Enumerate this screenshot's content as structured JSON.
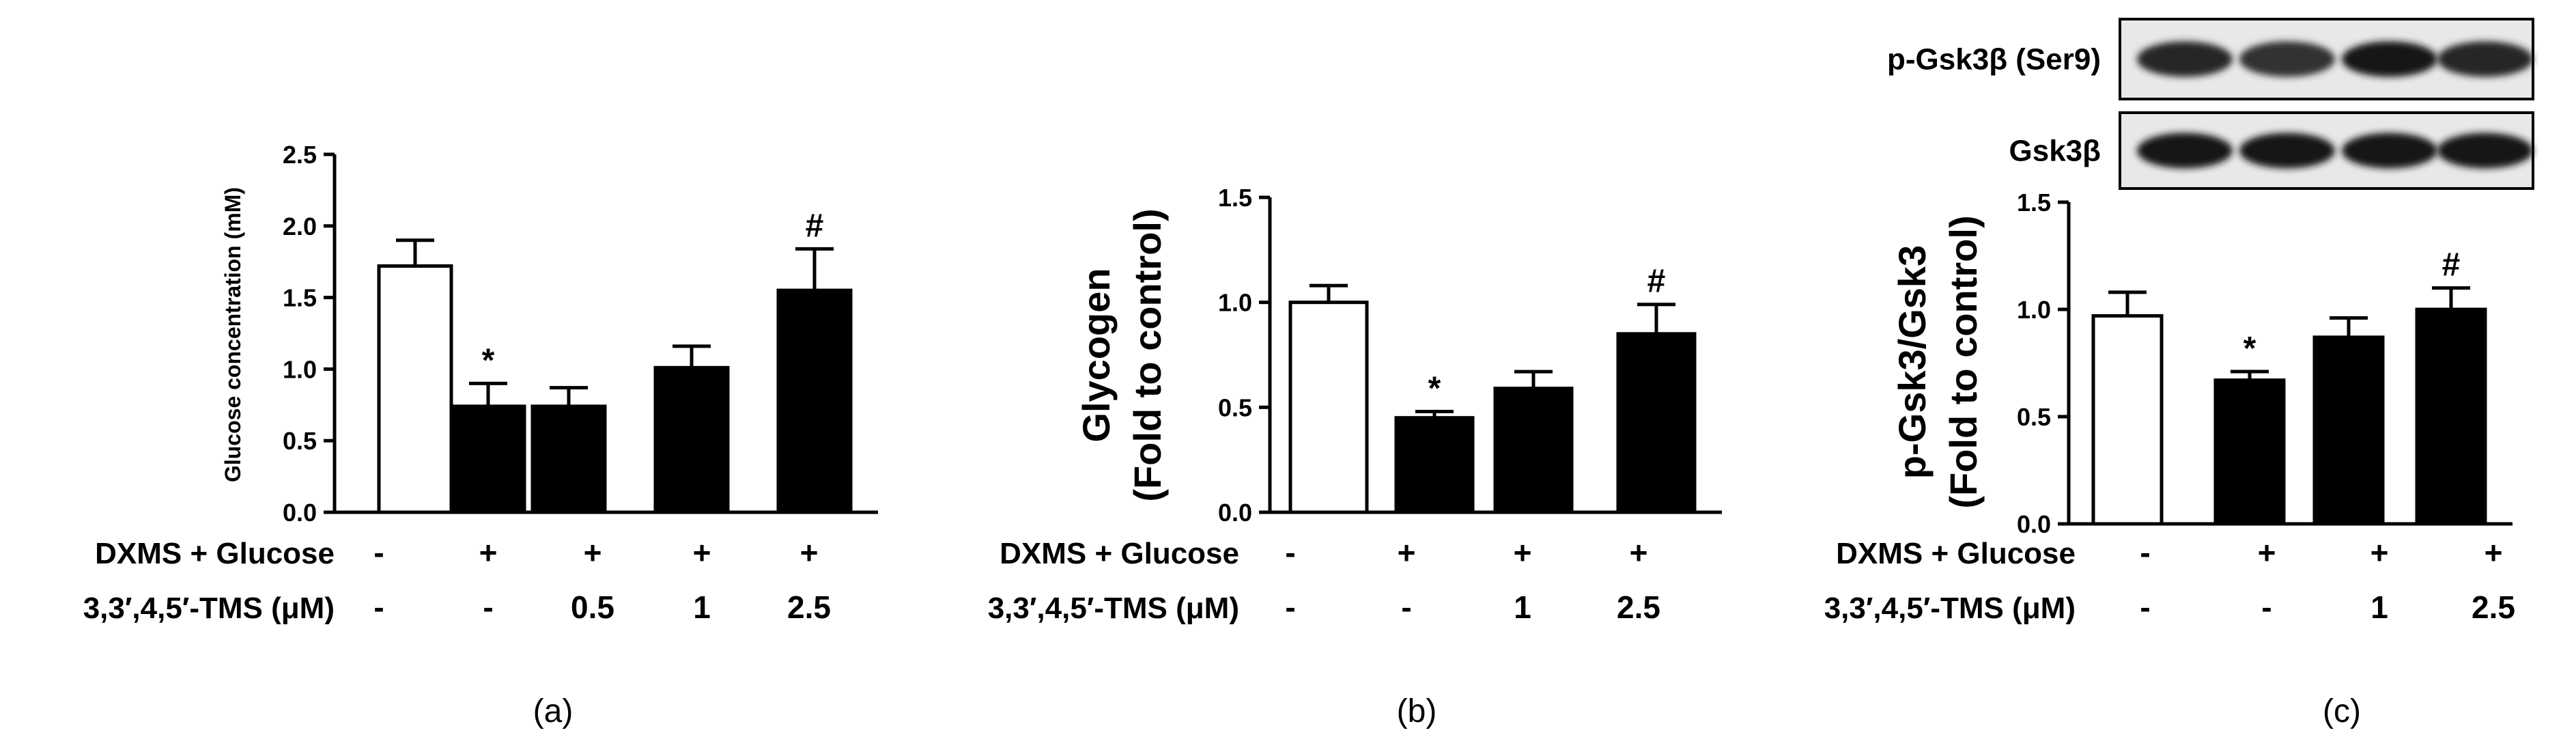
{
  "chart_data": [
    {
      "type": "bar",
      "panel_label": "(a)",
      "ylabel": "Glucose concentration (mM)",
      "ylim": [
        0,
        2.5
      ],
      "yticks": [
        "0.0",
        "0.5",
        "1.0",
        "1.5",
        "2.0",
        "2.5"
      ],
      "grid": false,
      "bars": [
        {
          "value": 1.72,
          "error": 0.18,
          "fill": "#ffffff",
          "annotation": ""
        },
        {
          "value": 0.74,
          "error": 0.16,
          "fill": "#000000",
          "annotation": "*"
        },
        {
          "value": 0.74,
          "error": 0.13,
          "fill": "#000000",
          "annotation": ""
        },
        {
          "value": 1.01,
          "error": 0.15,
          "fill": "#000000",
          "annotation": ""
        },
        {
          "value": 1.55,
          "error": 0.29,
          "fill": "#000000",
          "annotation": "#"
        }
      ],
      "rows": [
        {
          "label": "DXMS + Glucose",
          "values": [
            "-",
            "+",
            "+",
            "+",
            "+"
          ]
        },
        {
          "label": "3,3′,4,5′-TMS  (μM)",
          "values": [
            "-",
            "-",
            "0.5",
            "1",
            "2.5"
          ]
        }
      ]
    },
    {
      "type": "bar",
      "panel_label": "(b)",
      "ylabel": [
        "Glycogen",
        "(Fold to control)"
      ],
      "ylim": [
        0,
        1.5
      ],
      "yticks": [
        "0.0",
        "0.5",
        "1.0",
        "1.5"
      ],
      "grid": false,
      "bars": [
        {
          "value": 1.0,
          "error": 0.08,
          "fill": "#ffffff",
          "annotation": ""
        },
        {
          "value": 0.45,
          "error": 0.03,
          "fill": "#000000",
          "annotation": "*"
        },
        {
          "value": 0.59,
          "error": 0.08,
          "fill": "#000000",
          "annotation": ""
        },
        {
          "value": 0.85,
          "error": 0.14,
          "fill": "#000000",
          "annotation": "#"
        }
      ],
      "rows": [
        {
          "label": "DXMS + Glucose",
          "values": [
            "-",
            "+",
            "+",
            "+"
          ]
        },
        {
          "label": "3,3′,4,5′-TMS (μM)",
          "values": [
            "-",
            "-",
            "1",
            "2.5"
          ]
        }
      ]
    },
    {
      "type": "bar",
      "panel_label": "(c)",
      "ylabel": [
        "p-Gsk3/Gsk3",
        "(Fold to control)"
      ],
      "ylim": [
        0,
        1.5
      ],
      "yticks": [
        "0.0",
        "0.5",
        "1.0",
        "1.5"
      ],
      "grid": false,
      "bars": [
        {
          "value": 0.97,
          "error": 0.11,
          "fill": "#ffffff",
          "annotation": ""
        },
        {
          "value": 0.67,
          "error": 0.04,
          "fill": "#000000",
          "annotation": "*"
        },
        {
          "value": 0.87,
          "error": 0.09,
          "fill": "#000000",
          "annotation": ""
        },
        {
          "value": 1.0,
          "error": 0.1,
          "fill": "#000000",
          "annotation": "#"
        }
      ],
      "rows": [
        {
          "label": "DXMS + Glucose",
          "values": [
            "-",
            "+",
            "+",
            "+"
          ]
        },
        {
          "label": "3,3′,4,5′-TMS (μM)",
          "values": [
            "-",
            "-",
            "1",
            "2.5"
          ]
        }
      ],
      "blots": [
        {
          "label": "p-Gsk3β (Ser9)",
          "band_intensity": [
            0.85,
            0.8,
            0.9,
            0.85
          ]
        },
        {
          "label": "Gsk3β",
          "band_intensity": [
            0.9,
            0.9,
            0.9,
            0.9
          ]
        }
      ]
    }
  ]
}
